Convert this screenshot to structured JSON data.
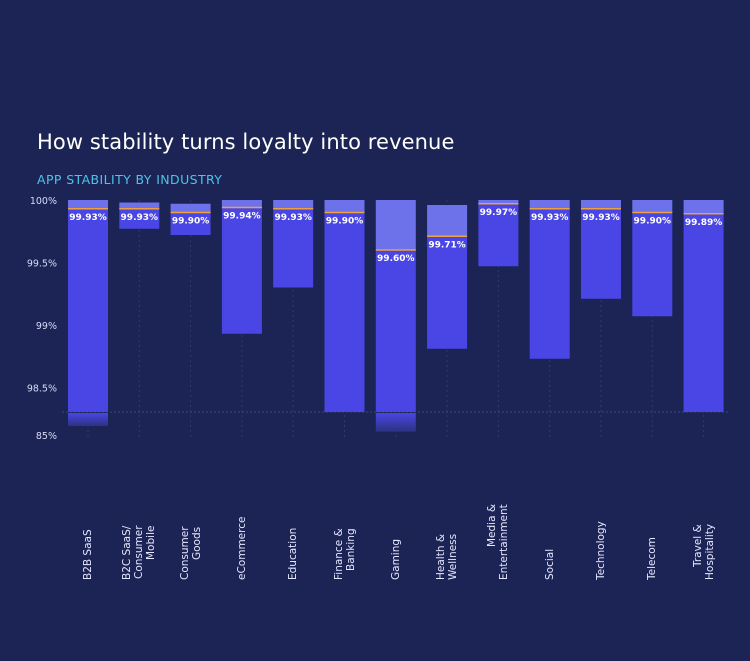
{
  "title": "How stability turns loyalty into revenue",
  "subtitle": "APP STABILITY BY INDUSTRY",
  "colors": {
    "background": "#1b2454",
    "upper": "#6e72ea",
    "lower": "#4a46e6",
    "median": "#f0a23a",
    "subtitle": "#4fc3e8",
    "grid": "#2e3a70"
  },
  "chart_data": {
    "type": "bar",
    "subtype": "floating-range-with-median",
    "title": "How stability turns loyalty into revenue",
    "subtitle": "APP STABILITY BY INDUSTRY",
    "xlabel": "",
    "ylabel": "",
    "ylim": [
      98.3,
      100
    ],
    "axis_break": {
      "below": 98.3,
      "to": 85
    },
    "yticks": [
      {
        "value": 100,
        "label": "100%"
      },
      {
        "value": 99.5,
        "label": "99.5%"
      },
      {
        "value": 99,
        "label": "99%"
      },
      {
        "value": 98.5,
        "label": "98.5%"
      },
      {
        "value": 85,
        "label": "85%"
      }
    ],
    "grid": true,
    "categories": [
      "B2B SaaS",
      "B2C SaaS/\nConsumer\nMobile",
      "Consumer\nGoods",
      "eCommerce",
      "Education",
      "Finance &\nBanking",
      "Gaming",
      "Health &\nWellness",
      "Media &\nEntertainment",
      "Social",
      "Technology",
      "Telecom",
      "Travel &\nHospitality"
    ],
    "series": [
      {
        "name": "high",
        "values": [
          100,
          99.98,
          99.97,
          100,
          100,
          100,
          100,
          99.96,
          100,
          100,
          100,
          100,
          100
        ]
      },
      {
        "name": "median",
        "values": [
          99.93,
          99.93,
          99.9,
          99.94,
          99.93,
          99.9,
          99.6,
          99.71,
          99.97,
          99.93,
          99.93,
          99.9,
          99.89
        ]
      },
      {
        "name": "low",
        "values": [
          90.2,
          99.77,
          99.72,
          98.93,
          99.3,
          98.3,
          86.9,
          98.81,
          99.47,
          98.73,
          99.21,
          99.07,
          98.3
        ]
      }
    ],
    "labels": [
      "99.93%",
      "99.93%",
      "99.90%",
      "99.94%",
      "99.93%",
      "99.90%",
      "99.60%",
      "99.71%",
      "99.97%",
      "99.93%",
      "99.93%",
      "99.90%",
      "99.89%"
    ]
  }
}
